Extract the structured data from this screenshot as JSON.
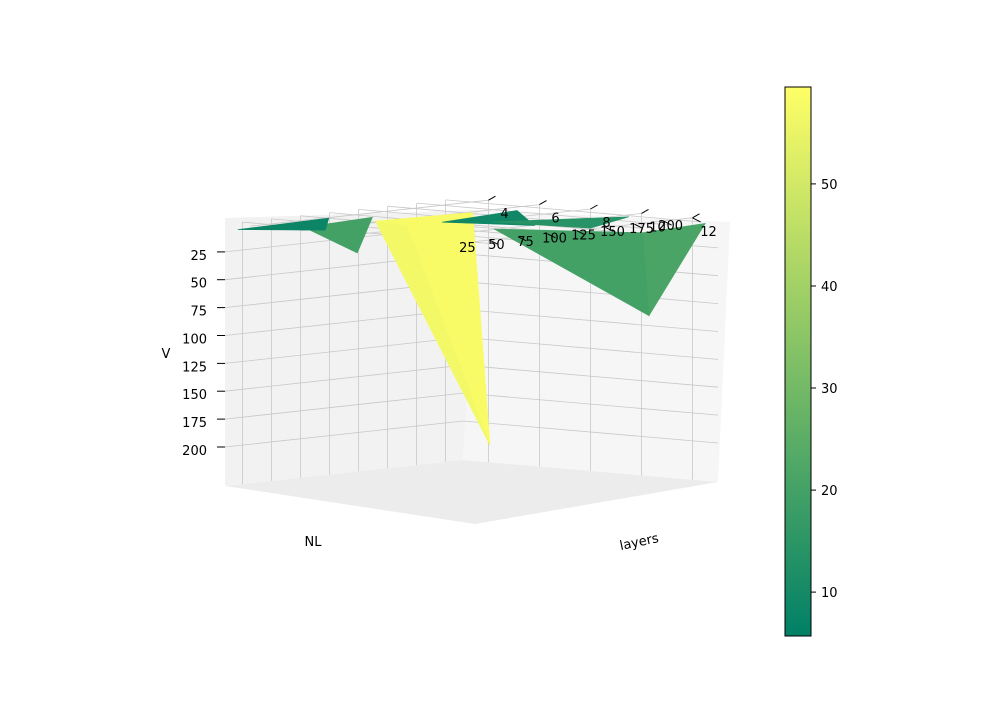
{
  "chart_data": {
    "type": "surface3d",
    "title": "",
    "axes": {
      "x": {
        "label": "NL",
        "ticks": [
          25,
          50,
          75,
          100,
          125,
          150,
          175,
          200
        ]
      },
      "y": {
        "label": "layers",
        "ticks": [
          4,
          6,
          8,
          10,
          12
        ]
      },
      "z": {
        "label": "V",
        "ticks": [
          25,
          50,
          75,
          100,
          125,
          150,
          175,
          200
        ]
      }
    },
    "colorbar": {
      "ticks": [
        10,
        20,
        30,
        40,
        50
      ],
      "range": [
        5.7,
        59.5
      ],
      "colormap": "summer",
      "colors": {
        "low": "#008066",
        "high": "#ffff66"
      }
    },
    "surface_facets": [
      {
        "nl_range": [
          25,
          50
        ],
        "layers_range": [
          3,
          5
        ],
        "v_peak": 10,
        "value": 8
      },
      {
        "nl_range": [
          50,
          100
        ],
        "layers_range": [
          3,
          5
        ],
        "v_peak": 30,
        "value": 20
      },
      {
        "nl_range": [
          100,
          200
        ],
        "layers_range": [
          4,
          6
        ],
        "v_peak": 210,
        "value": 58
      },
      {
        "nl_range": [
          100,
          200
        ],
        "layers_range": [
          6,
          8
        ],
        "v_peak": 12,
        "value": 9
      },
      {
        "nl_range": [
          150,
          200
        ],
        "layers_range": [
          9,
          12
        ],
        "v_peak": 80,
        "value": 21
      }
    ]
  }
}
